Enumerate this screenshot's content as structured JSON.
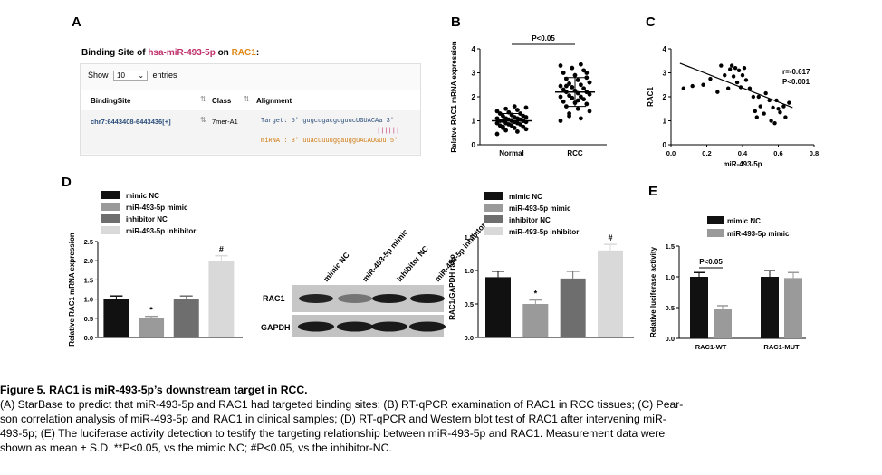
{
  "panels": {
    "A": "A",
    "B": "B",
    "C": "C",
    "D": "D",
    "E": "E"
  },
  "panelA": {
    "title_prefix": "Binding Site of ",
    "title_mirna": "hsa-miR-493-5p",
    "title_mid": " on ",
    "title_gene": "RAC1",
    "title_suffix": ":",
    "show_label": "Show",
    "entries_value": "10",
    "entries_label": "entries",
    "col_binding": "BindingSite",
    "col_class": "Class",
    "col_alignment": "Alignment",
    "row_binding": "chr7:6443408-6443436[+]",
    "row_class": "7mer-A1",
    "target_line": "Target: 5' gugcugacguguucUGUACAa 3'",
    "pair_line": "||||||",
    "mirna_line": "miRNA : 3' uuacuuuuggaugguACAUGUu 5'"
  },
  "chart_data": [
    {
      "id": "B",
      "type": "scatter",
      "ylabel": "Relatve RAC1 mRNA expression",
      "categories": [
        "Normal",
        "RCC"
      ],
      "ylim": [
        0,
        4
      ],
      "yticks": [
        "0",
        "1",
        "2",
        "3",
        "4"
      ],
      "annotation": "P<0.05",
      "series": [
        {
          "mean": 1.0,
          "sd": 0.3,
          "values": [
            0.45,
            0.55,
            0.6,
            0.65,
            0.7,
            0.7,
            0.75,
            0.8,
            0.8,
            0.85,
            0.85,
            0.9,
            0.9,
            0.9,
            0.95,
            0.95,
            1.0,
            1.0,
            1.0,
            1.0,
            1.05,
            1.05,
            1.1,
            1.1,
            1.1,
            1.15,
            1.15,
            1.2,
            1.2,
            1.25,
            1.3,
            1.3,
            1.35,
            1.4,
            1.45,
            1.5,
            1.55,
            1.6,
            0.75,
            1.0
          ]
        },
        {
          "mean": 2.2,
          "sd": 0.6,
          "values": [
            1.0,
            1.1,
            1.3,
            1.4,
            1.5,
            1.6,
            1.7,
            1.75,
            1.8,
            1.9,
            1.95,
            2.0,
            2.0,
            2.05,
            2.1,
            2.15,
            2.2,
            2.2,
            2.25,
            2.3,
            2.35,
            2.4,
            2.45,
            2.5,
            2.55,
            2.6,
            2.7,
            2.75,
            2.8,
            2.9,
            3.0,
            3.1,
            3.2,
            3.3,
            3.35,
            1.2,
            2.6,
            1.85,
            2.45,
            3.0
          ]
        }
      ]
    },
    {
      "id": "C",
      "type": "scatter",
      "xlabel": "miR-493-5p",
      "ylabel": "RAC1",
      "xlim": [
        0,
        0.8
      ],
      "ylim": [
        0,
        4
      ],
      "xticks": [
        "0.0",
        "0.2",
        "0.4",
        "0.6",
        "0.8"
      ],
      "yticks": [
        "0",
        "1",
        "2",
        "3",
        "4"
      ],
      "annotation_r": "r=-0.617",
      "annotation_p": "P<0.001",
      "fit": [
        [
          0.05,
          3.4
        ],
        [
          0.68,
          1.55
        ]
      ],
      "points": [
        [
          0.07,
          2.35
        ],
        [
          0.12,
          2.45
        ],
        [
          0.18,
          2.5
        ],
        [
          0.22,
          2.75
        ],
        [
          0.26,
          2.2
        ],
        [
          0.28,
          3.3
        ],
        [
          0.3,
          2.9
        ],
        [
          0.32,
          2.35
        ],
        [
          0.33,
          3.15
        ],
        [
          0.34,
          3.3
        ],
        [
          0.35,
          2.85
        ],
        [
          0.36,
          3.2
        ],
        [
          0.37,
          2.6
        ],
        [
          0.38,
          3.1
        ],
        [
          0.39,
          2.4
        ],
        [
          0.4,
          2.9
        ],
        [
          0.41,
          3.2
        ],
        [
          0.42,
          2.7
        ],
        [
          0.44,
          2.35
        ],
        [
          0.46,
          2.0
        ],
        [
          0.47,
          1.4
        ],
        [
          0.48,
          1.15
        ],
        [
          0.49,
          2.0
        ],
        [
          0.5,
          1.6
        ],
        [
          0.52,
          1.3
        ],
        [
          0.53,
          2.15
        ],
        [
          0.55,
          1.85
        ],
        [
          0.56,
          1.0
        ],
        [
          0.57,
          1.55
        ],
        [
          0.58,
          0.9
        ],
        [
          0.59,
          1.85
        ],
        [
          0.6,
          1.5
        ],
        [
          0.61,
          1.35
        ],
        [
          0.63,
          1.6
        ],
        [
          0.64,
          1.15
        ],
        [
          0.66,
          1.75
        ]
      ]
    },
    {
      "id": "D1",
      "type": "bar",
      "ylabel": "Relative RAC1 mRNA expression",
      "ylim": [
        0,
        2.5
      ],
      "yticks": [
        "0.0",
        "0.5",
        "1.0",
        "1.5",
        "2.0",
        "2.5"
      ],
      "legend": [
        "mimic NC",
        "miR-493-5p mimic",
        "inhibitor NC",
        "miR-493-5p inhibitor"
      ],
      "values": [
        1.0,
        0.5,
        1.0,
        2.0
      ],
      "errors": [
        0.08,
        0.05,
        0.08,
        0.13
      ],
      "marks": [
        "",
        "*",
        "",
        "#"
      ],
      "colors": [
        "#111111",
        "#9a9a9a",
        "#6e6e6e",
        "#d9d9d9"
      ]
    },
    {
      "id": "D2",
      "type": "bar",
      "ylabel": "RAC1/GAPDH ratio",
      "ylim": [
        0,
        1.5
      ],
      "yticks": [
        "0.0",
        "0.5",
        "1.0",
        "1.5"
      ],
      "legend": [
        "mimic NC",
        "miR-493-5p mimic",
        "inhibitor NC",
        "miR-493-5p inhibitor"
      ],
      "values": [
        0.9,
        0.5,
        0.88,
        1.3
      ],
      "errors": [
        0.09,
        0.06,
        0.11,
        0.09
      ],
      "marks": [
        "",
        "*",
        "",
        "#"
      ],
      "colors": [
        "#111111",
        "#9a9a9a",
        "#6e6e6e",
        "#d9d9d9"
      ]
    },
    {
      "id": "E",
      "type": "bar",
      "ylabel": "Relative luciferase activity",
      "ylim": [
        0,
        1.5
      ],
      "yticks": [
        "0.0",
        "0.5",
        "1.0",
        "1.5"
      ],
      "categories": [
        "RAC1-WT",
        "RAC1-MUT"
      ],
      "legend": [
        "mimic NC",
        "miR-493-5p mimic"
      ],
      "series": [
        {
          "values": [
            1.0,
            1.0
          ],
          "errors": [
            0.07,
            0.1
          ]
        },
        {
          "values": [
            0.48,
            0.98
          ],
          "errors": [
            0.05,
            0.09
          ]
        }
      ],
      "annotation": "P<0.05",
      "colors": [
        "#111111",
        "#9a9a9a"
      ]
    }
  ],
  "western": {
    "lanes": [
      "mimic NC",
      "miR-493-5p mimic",
      "inhibitor NC",
      "miR-493-5p inhibitor"
    ],
    "band1": "RAC1",
    "band2": "GAPDH"
  },
  "caption": {
    "title": "Figure 5. RAC1 is miR-493-5p’s downstream target in RCC.",
    "line1": "(A) StarBase to predict that miR-493-5p and RAC1 had targeted binding sites; (B) RT-qPCR examination of RAC1 in RCC tissues; (C) Pear-",
    "line2": "son correlation analysis of miR-493-5p and RAC1 in clinical samples; (D) RT-qPCR and Western blot test of RAC1 after intervening miR-",
    "line3": "493-5p; (E) The luciferase activity detection to testify the targeting relationship between miR-493-5p and RAC1. Measurement data were",
    "line4": "shown as mean ± S.D. **P<0.05, vs the mimic NC; #P<0.05, vs the inhibitor-NC."
  }
}
